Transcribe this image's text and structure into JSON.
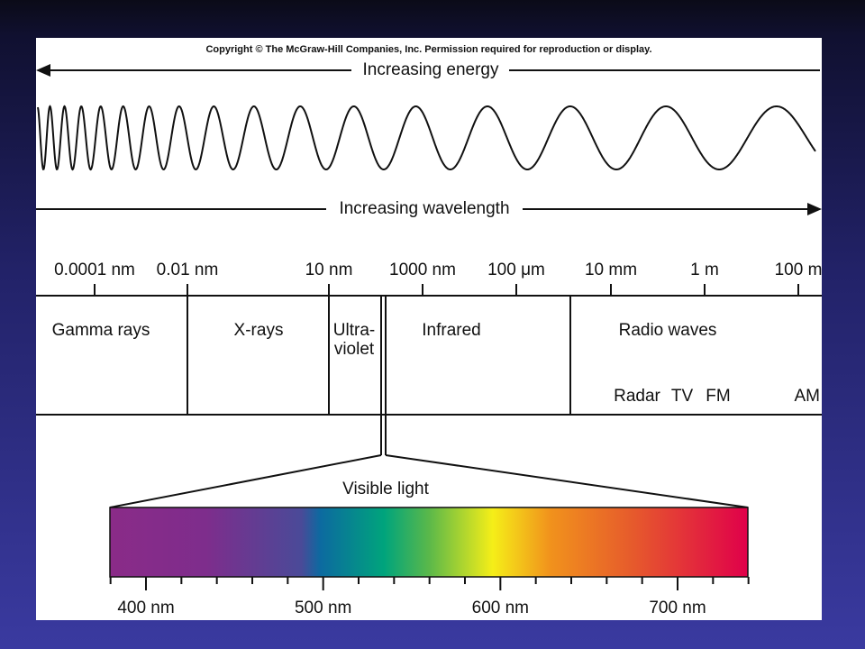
{
  "copyright": "Copyright © The McGraw-Hill Companies, Inc. Permission required for reproduction or display.",
  "energy_label": "Increasing energy",
  "wavelength_label": "Increasing wavelength",
  "scale_labels": [
    "0.0001 nm",
    "0.01 nm",
    "10 nm",
    "1000 nm",
    "100 μm",
    "10 mm",
    "1 m",
    "100 m"
  ],
  "regions": [
    "Gamma rays",
    "X-rays",
    "Ultra-",
    "violet",
    "Infrared",
    "Radio waves"
  ],
  "radio_bands": [
    "Radar",
    "TV",
    "FM",
    "AM"
  ],
  "visible_label": "Visible light",
  "visible_scale": [
    "400 nm",
    "500 nm",
    "600 nm",
    "700 nm"
  ]
}
